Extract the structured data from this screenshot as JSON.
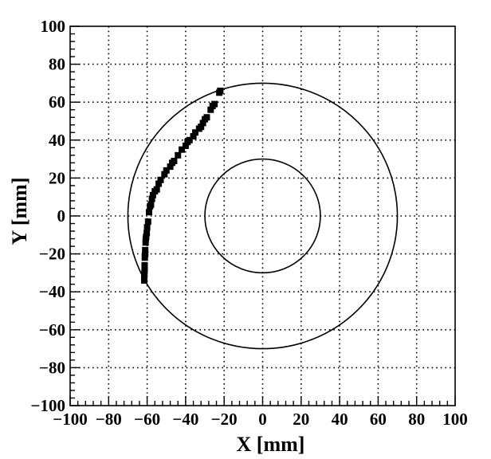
{
  "chart_data": {
    "type": "scatter",
    "title": "",
    "xlabel": "X [mm]",
    "ylabel": "Y [mm]",
    "xlim": [
      -100,
      100
    ],
    "ylim": [
      -100,
      100
    ],
    "x_ticks": [
      -100,
      -80,
      -60,
      -40,
      -20,
      0,
      20,
      40,
      60,
      80,
      100
    ],
    "y_ticks": [
      -100,
      -80,
      -60,
      -40,
      -20,
      0,
      20,
      40,
      60,
      80,
      100
    ],
    "x_tick_labels": [
      "−100",
      "−80",
      "−60",
      "−40",
      "−20",
      "0",
      "20",
      "40",
      "60",
      "80",
      "100"
    ],
    "y_tick_labels": [
      "−100",
      "−80",
      "−60",
      "−40",
      "−20",
      "0",
      "20",
      "40",
      "60",
      "80",
      "100"
    ],
    "grid": true,
    "circles": [
      {
        "cx": 0,
        "cy": 0,
        "r": 30
      },
      {
        "cx": 0,
        "cy": 0,
        "r": 70
      }
    ],
    "series": [
      {
        "marker": "square",
        "color": "#000000",
        "points": [
          [
            -22,
            66
          ],
          [
            -22.5,
            65
          ],
          [
            -25,
            59
          ],
          [
            -26,
            58
          ],
          [
            -27,
            56
          ],
          [
            -29,
            52
          ],
          [
            -30,
            51
          ],
          [
            -31,
            49
          ],
          [
            -32,
            47
          ],
          [
            -33,
            46
          ],
          [
            -35,
            44
          ],
          [
            -36,
            42
          ],
          [
            -38,
            40
          ],
          [
            -39,
            39
          ],
          [
            -40,
            37
          ],
          [
            -42,
            35
          ],
          [
            -44,
            32
          ],
          [
            -46,
            29
          ],
          [
            -47,
            28
          ],
          [
            -48,
            26
          ],
          [
            -50,
            24
          ],
          [
            -51,
            22
          ],
          [
            -53,
            19
          ],
          [
            -54,
            17
          ],
          [
            -55,
            14
          ],
          [
            -56,
            13
          ],
          [
            -57,
            11
          ],
          [
            -57.5,
            9
          ],
          [
            -58,
            6
          ],
          [
            -58.5,
            5
          ],
          [
            -59,
            2
          ],
          [
            -59.5,
            -3
          ],
          [
            -60,
            -6
          ],
          [
            -60.2,
            -9
          ],
          [
            -60.5,
            -11
          ],
          [
            -60.7,
            -12
          ],
          [
            -60.8,
            -14
          ],
          [
            -61,
            -18
          ],
          [
            -61,
            -20
          ],
          [
            -61.2,
            -22
          ],
          [
            -61.3,
            -26
          ],
          [
            -61.3,
            -28
          ],
          [
            -61.4,
            -30
          ],
          [
            -61.5,
            -32
          ],
          [
            -61.5,
            -34
          ]
        ]
      }
    ]
  }
}
